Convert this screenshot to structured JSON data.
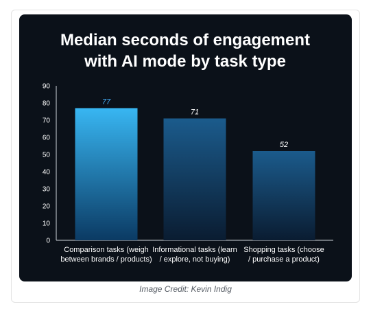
{
  "chart_data": {
    "type": "bar",
    "title_lines": [
      "Median seconds of engagement",
      "with AI mode by task type"
    ],
    "categories": [
      [
        "Comparison tasks (weigh",
        "between brands / products)"
      ],
      [
        "Informational tasks (learn",
        "/ explore, not buying)"
      ],
      [
        "Shopping tasks (choose",
        "/ purchase a product)"
      ]
    ],
    "values": [
      77,
      71,
      52
    ],
    "value_labels": [
      "77",
      "71",
      "52"
    ],
    "yticks": [
      "0",
      "10",
      "20",
      "30",
      "40",
      "50",
      "60",
      "70",
      "80",
      "90"
    ],
    "ylim": [
      0,
      90
    ],
    "grid": false,
    "colors": {
      "background": "#0b1119",
      "highlight_top": "#38b6f2",
      "highlight_bottom": "#0b3a63",
      "bar_top": "#1b5b8c",
      "bar_bottom": "#0a1c31",
      "highlight_label": "#45b3ff",
      "axis": "#cfd5dc",
      "text": "#ffffff"
    }
  },
  "caption": "Image Credit: Kevin Indig"
}
